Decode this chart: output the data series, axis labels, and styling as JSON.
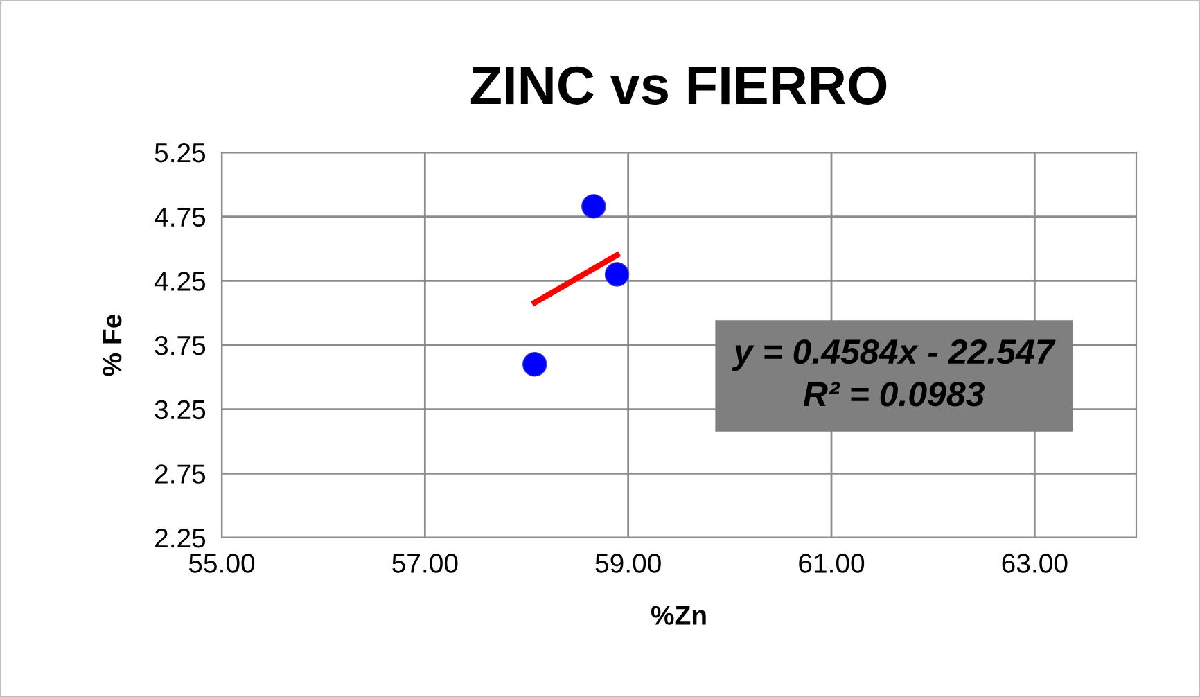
{
  "chart_data": {
    "type": "scatter",
    "title": "ZINC vs FIERRO",
    "xlabel": "%Zn",
    "ylabel": "% Fe",
    "series": [
      {
        "color": "#0000ff",
        "x": [
          58.08,
          58.66,
          58.89
        ],
        "values": [
          3.6,
          4.83,
          4.3
        ],
        "marker": "circle"
      },
      {
        "type": "line",
        "color": "#ff0000",
        "x": [
          58.08,
          58.89
        ],
        "values": [
          4.08,
          4.45
        ],
        "marker": "none"
      }
    ],
    "xlim": [
      55,
      64
    ],
    "xticks": [
      {
        "value": 55,
        "label": "55.00"
      },
      {
        "value": 57,
        "label": "57.00"
      },
      {
        "value": 59,
        "label": "59.00"
      },
      {
        "value": 61,
        "label": "61.00"
      },
      {
        "value": 63,
        "label": "63.00"
      }
    ],
    "ylim": [
      2.25,
      5.25
    ],
    "yticks": [
      2.25,
      2.75,
      3.25,
      3.75,
      4.25,
      4.75,
      5.25
    ],
    "grid": true,
    "annotations": [
      "y = 0.4584x - 22.547\nR² = 0.0983"
    ]
  }
}
